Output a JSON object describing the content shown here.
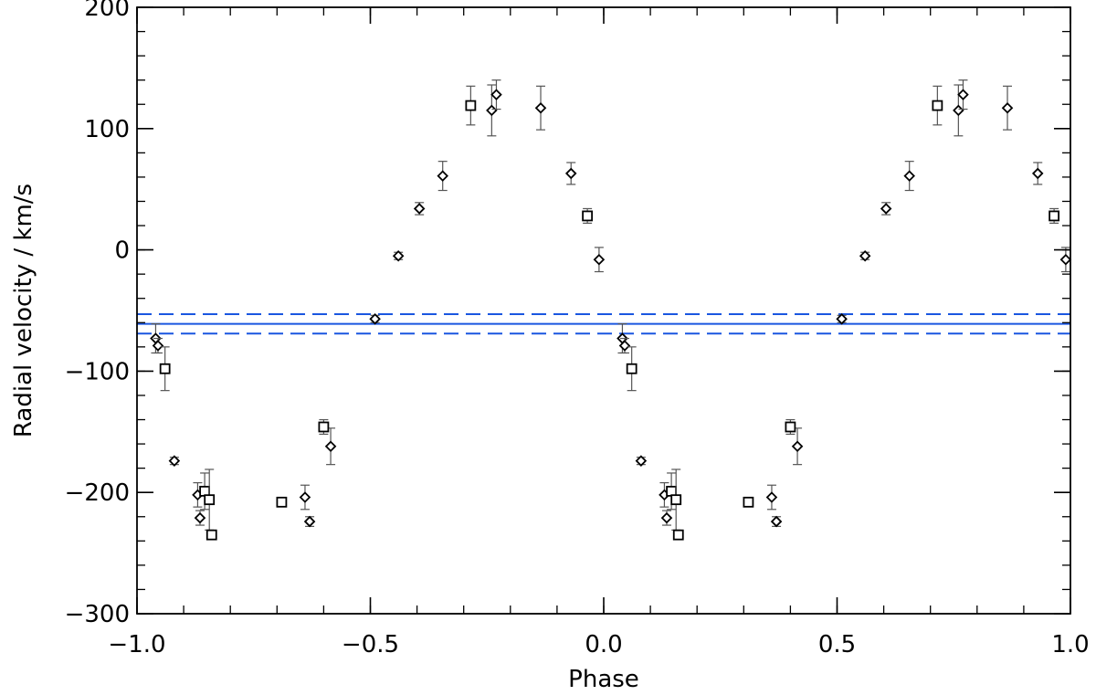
{
  "chart_data": {
    "type": "scatter",
    "xlabel": "Phase",
    "ylabel": "Radial velocity / km/s",
    "xlim": [
      -1.0,
      1.0
    ],
    "ylim": [
      -300,
      200
    ],
    "x_ticks": [
      -1.0,
      -0.5,
      0.0,
      0.5,
      1.0
    ],
    "x_tick_labels": [
      "−1.0",
      "−0.5",
      "0.0",
      "0.5",
      "1.0"
    ],
    "y_ticks": [
      -300,
      -200,
      -100,
      0,
      100,
      200
    ],
    "y_tick_labels": [
      "−300",
      "−200",
      "−100",
      "0",
      "100",
      "200"
    ],
    "x_minor_step": 0.1,
    "y_minor_step": 20,
    "grid": false,
    "series": [
      {
        "marker": "diamond",
        "color": "#000000",
        "points": [
          {
            "x": -0.96,
            "y": -73,
            "err": 12
          },
          {
            "x": -0.955,
            "y": -79,
            "err": 6
          },
          {
            "x": -0.92,
            "y": -174,
            "err": 3
          },
          {
            "x": -0.87,
            "y": -202,
            "err": 10
          },
          {
            "x": -0.865,
            "y": -221,
            "err": 6
          },
          {
            "x": -0.64,
            "y": -204,
            "err": 10
          },
          {
            "x": -0.63,
            "y": -224,
            "err": 4
          },
          {
            "x": -0.585,
            "y": -162,
            "err": 15
          },
          {
            "x": -0.49,
            "y": -57,
            "err": 3
          },
          {
            "x": -0.44,
            "y": -5,
            "err": 3
          },
          {
            "x": -0.395,
            "y": 34,
            "err": 5
          },
          {
            "x": -0.345,
            "y": 61,
            "err": 12
          },
          {
            "x": -0.24,
            "y": 115,
            "err": 21
          },
          {
            "x": -0.23,
            "y": 128,
            "err": 12
          },
          {
            "x": -0.135,
            "y": 117,
            "err": 18
          },
          {
            "x": -0.07,
            "y": 63,
            "err": 9
          },
          {
            "x": -0.01,
            "y": -8,
            "err": 10
          },
          {
            "x": 0.04,
            "y": -73,
            "err": 12
          },
          {
            "x": 0.045,
            "y": -79,
            "err": 6
          },
          {
            "x": 0.08,
            "y": -174,
            "err": 3
          },
          {
            "x": 0.13,
            "y": -202,
            "err": 10
          },
          {
            "x": 0.135,
            "y": -221,
            "err": 6
          },
          {
            "x": 0.36,
            "y": -204,
            "err": 10
          },
          {
            "x": 0.37,
            "y": -224,
            "err": 4
          },
          {
            "x": 0.415,
            "y": -162,
            "err": 15
          },
          {
            "x": 0.51,
            "y": -57,
            "err": 3
          },
          {
            "x": 0.56,
            "y": -5,
            "err": 3
          },
          {
            "x": 0.605,
            "y": 34,
            "err": 5
          },
          {
            "x": 0.655,
            "y": 61,
            "err": 12
          },
          {
            "x": 0.76,
            "y": 115,
            "err": 21
          },
          {
            "x": 0.77,
            "y": 128,
            "err": 12
          },
          {
            "x": 0.865,
            "y": 117,
            "err": 18
          },
          {
            "x": 0.93,
            "y": 63,
            "err": 9
          },
          {
            "x": 0.99,
            "y": -8,
            "err": 10
          }
        ]
      },
      {
        "marker": "square",
        "color": "#000000",
        "points": [
          {
            "x": -0.94,
            "y": -98,
            "err": 18
          },
          {
            "x": -0.855,
            "y": -199,
            "err": 15
          },
          {
            "x": -0.845,
            "y": -206,
            "err": 25
          },
          {
            "x": -0.84,
            "y": -235,
            "err": 3
          },
          {
            "x": -0.69,
            "y": -208,
            "err": 3
          },
          {
            "x": -0.6,
            "y": -146,
            "err": 6
          },
          {
            "x": -0.285,
            "y": 119,
            "err": 16
          },
          {
            "x": -0.035,
            "y": 28,
            "err": 6
          },
          {
            "x": 0.06,
            "y": -98,
            "err": 18
          },
          {
            "x": 0.145,
            "y": -199,
            "err": 15
          },
          {
            "x": 0.155,
            "y": -206,
            "err": 25
          },
          {
            "x": 0.16,
            "y": -235,
            "err": 3
          },
          {
            "x": 0.31,
            "y": -208,
            "err": 3
          },
          {
            "x": 0.4,
            "y": -146,
            "err": 6
          },
          {
            "x": 0.715,
            "y": 119,
            "err": 16
          },
          {
            "x": 0.965,
            "y": 28,
            "err": 6
          }
        ]
      }
    ],
    "reference_lines": [
      {
        "y": -61,
        "style": "solid",
        "color": "#1a56e0"
      },
      {
        "y": -53,
        "style": "dashed",
        "color": "#1a56e0"
      },
      {
        "y": -69,
        "style": "dashed",
        "color": "#1a56e0"
      }
    ]
  }
}
